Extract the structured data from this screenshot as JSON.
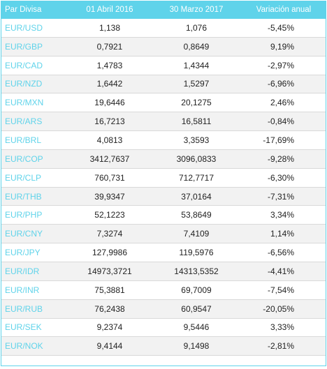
{
  "header": {
    "pair": "Par Divisa",
    "date1": "01 Abril 2016",
    "date2": "30 Marzo 2017",
    "change": "Variación anual"
  },
  "rows": [
    {
      "pair": "EUR/USD",
      "v1": "1,138",
      "v2": "1,076",
      "change": "-5,45%"
    },
    {
      "pair": "EUR/GBP",
      "v1": "0,7921",
      "v2": "0,8649",
      "change": "9,19%"
    },
    {
      "pair": "EUR/CAD",
      "v1": "1,4783",
      "v2": "1,4344",
      "change": "-2,97%"
    },
    {
      "pair": "EUR/NZD",
      "v1": "1,6442",
      "v2": "1,5297",
      "change": "-6,96%"
    },
    {
      "pair": "EUR/MXN",
      "v1": "19,6446",
      "v2": "20,1275",
      "change": "2,46%"
    },
    {
      "pair": "EUR/ARS",
      "v1": "16,7213",
      "v2": "16,5811",
      "change": "-0,84%"
    },
    {
      "pair": "EUR/BRL",
      "v1": "4,0813",
      "v2": "3,3593",
      "change": "-17,69%"
    },
    {
      "pair": "EUR/COP",
      "v1": "3412,7637",
      "v2": "3096,0833",
      "change": "-9,28%"
    },
    {
      "pair": "EUR/CLP",
      "v1": "760,731",
      "v2": "712,7717",
      "change": "-6,30%"
    },
    {
      "pair": "EUR/THB",
      "v1": "39,9347",
      "v2": "37,0164",
      "change": "-7,31%"
    },
    {
      "pair": "EUR/PHP",
      "v1": "52,1223",
      "v2": "53,8649",
      "change": "3,34%"
    },
    {
      "pair": "EUR/CNY",
      "v1": "7,3274",
      "v2": "7,4109",
      "change": "1,14%"
    },
    {
      "pair": "EUR/JPY",
      "v1": "127,9986",
      "v2": "119,5976",
      "change": "-6,56%"
    },
    {
      "pair": "EUR/IDR",
      "v1": "14973,3721",
      "v2": "14313,5352",
      "change": "-4,41%"
    },
    {
      "pair": "EUR/INR",
      "v1": "75,3881",
      "v2": "69,7009",
      "change": "-7,54%"
    },
    {
      "pair": "EUR/RUB",
      "v1": "76,2438",
      "v2": "60,9547",
      "change": "-20,05%"
    },
    {
      "pair": "EUR/SEK",
      "v1": "9,2374",
      "v2": "9,5446",
      "change": "3,33%"
    },
    {
      "pair": "EUR/NOK",
      "v1": "9,4144",
      "v2": "9,1498",
      "change": "-2,81%"
    }
  ],
  "colors": {
    "accent": "#5fd3ea",
    "row_alt": "#f2f2f2",
    "text": "#222222"
  }
}
